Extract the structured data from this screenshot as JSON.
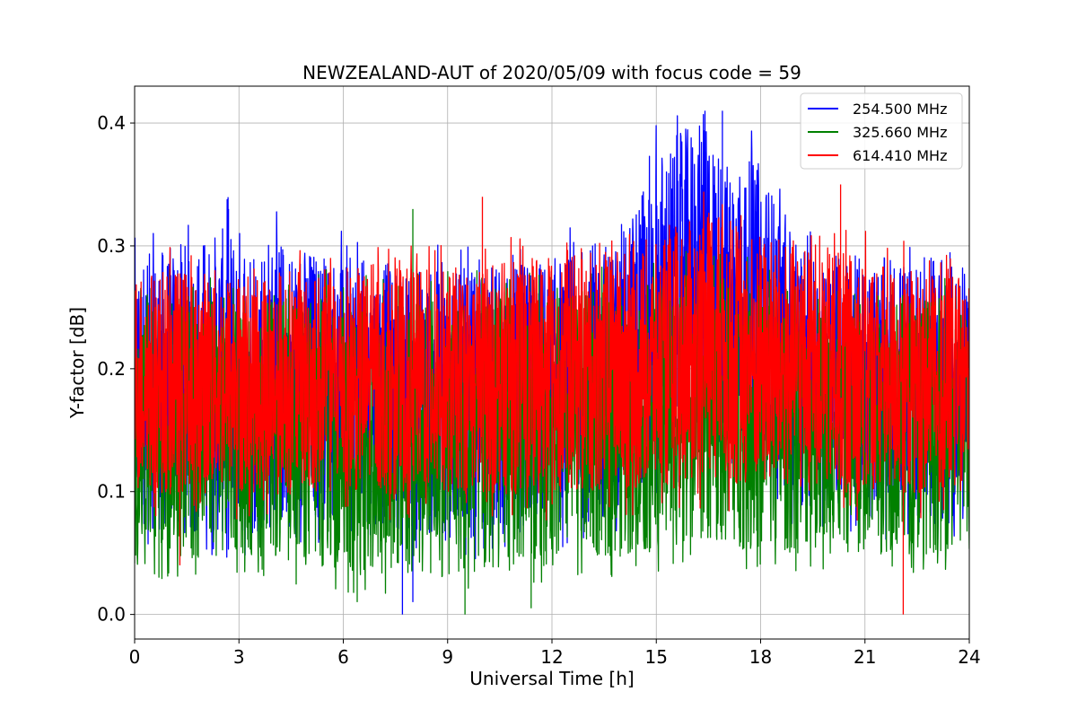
{
  "chart_data": {
    "type": "line",
    "title": "NEWZEALAND-AUT of 2020/05/09 with focus code = 59",
    "xlabel": "Universal Time [h]",
    "ylabel": "Y-factor [dB]",
    "xlim": [
      0,
      24
    ],
    "ylim": [
      -0.02,
      0.43
    ],
    "xticks": [
      0,
      3,
      6,
      9,
      12,
      15,
      18,
      21,
      24
    ],
    "yticks": [
      0.0,
      0.1,
      0.2,
      0.3,
      0.4
    ],
    "xtick_labels": [
      "0",
      "3",
      "6",
      "9",
      "12",
      "15",
      "18",
      "21",
      "24"
    ],
    "ytick_labels": [
      "0.0",
      "0.1",
      "0.2",
      "0.3",
      "0.4"
    ],
    "grid": true,
    "legend_position": "top-right",
    "series": [
      {
        "name": "254.500 MHz",
        "color": "#0000ff",
        "envelope_x": [
          0,
          3,
          6,
          9,
          12,
          14,
          15,
          16,
          16.5,
          17,
          18,
          19,
          21,
          24
        ],
        "upper": [
          0.3,
          0.33,
          0.3,
          0.29,
          0.3,
          0.32,
          0.39,
          0.41,
          0.41,
          0.38,
          0.38,
          0.31,
          0.3,
          0.3
        ],
        "lower": [
          0.06,
          0.05,
          0.07,
          0.05,
          0.06,
          0.07,
          0.1,
          0.13,
          0.14,
          0.12,
          0.11,
          0.08,
          0.07,
          0.06
        ],
        "spikes": [
          [
            7.7,
            0.0
          ],
          [
            8.0,
            0.01
          ],
          [
            2.7,
            0.33
          ],
          [
            16.4,
            0.41
          ],
          [
            16.9,
            0.41
          ]
        ]
      },
      {
        "name": "325.660 MHz",
        "color": "#008000",
        "envelope_x": [
          0,
          3,
          6,
          9,
          12,
          15,
          16.5,
          18,
          21,
          24
        ],
        "upper": [
          0.27,
          0.27,
          0.27,
          0.27,
          0.27,
          0.28,
          0.29,
          0.28,
          0.27,
          0.27
        ],
        "lower": [
          0.03,
          0.04,
          0.02,
          0.02,
          0.03,
          0.04,
          0.05,
          0.04,
          0.04,
          0.04
        ],
        "spikes": [
          [
            8.0,
            0.33
          ],
          [
            9.5,
            0.0
          ],
          [
            6.4,
            0.01
          ],
          [
            11.4,
            0.005
          ],
          [
            0.7,
            0.03
          ]
        ]
      },
      {
        "name": "614.410 MHz",
        "color": "#ff0000",
        "envelope_x": [
          0,
          3,
          6,
          9,
          12,
          15,
          16.5,
          18,
          21,
          24
        ],
        "upper": [
          0.29,
          0.29,
          0.29,
          0.29,
          0.3,
          0.31,
          0.34,
          0.32,
          0.3,
          0.28
        ],
        "lower": [
          0.09,
          0.09,
          0.09,
          0.09,
          0.09,
          0.09,
          0.1,
          0.09,
          0.09,
          0.09
        ],
        "spikes": [
          [
            10.0,
            0.34
          ],
          [
            20.3,
            0.35
          ],
          [
            22.1,
            0.0
          ],
          [
            1.3,
            0.04
          ]
        ]
      }
    ]
  }
}
